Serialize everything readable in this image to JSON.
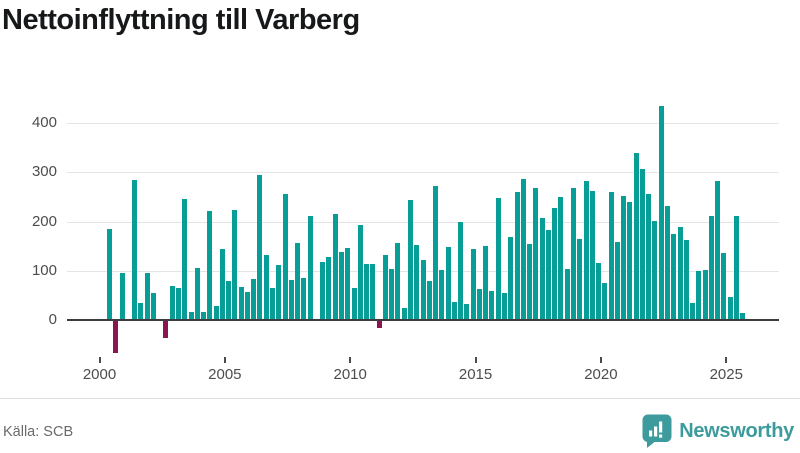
{
  "title": "Nettoinflyttning till Varberg",
  "footer": {
    "source": "Källa: SCB",
    "brand": "Newsworthy"
  },
  "colors": {
    "bar_positive": "#089e98",
    "bar_negative": "#8e1353",
    "brand_teal": "#3d9b9d",
    "gridline": "#e4e4e4",
    "axis_line": "#3c3c3c",
    "axis_text": "#4d4d4d"
  },
  "chart_data": {
    "type": "bar",
    "title": "Nettoinflyttning till Varberg",
    "frequency": "quarterly",
    "start": "2000-Q2",
    "end": "2025-Q3",
    "x_tick_labels": [
      "2000",
      "2005",
      "2010",
      "2015",
      "2020",
      "2025"
    ],
    "y_ticks": [
      0,
      100,
      200,
      300,
      400
    ],
    "ylim": [
      -75,
      450
    ],
    "grid": "horizontal",
    "legend": "none",
    "values": [
      183,
      -65,
      93,
      0,
      283,
      32,
      93,
      52,
      0,
      -35,
      68,
      63,
      243,
      14,
      104,
      14,
      220,
      27,
      143,
      78,
      222,
      66,
      54,
      81,
      292,
      131,
      62,
      110,
      254,
      80,
      154,
      84,
      210,
      0,
      115,
      126,
      213,
      137,
      144,
      63,
      191,
      111,
      111,
      -15,
      131,
      102,
      154,
      22,
      241,
      151,
      120,
      77,
      271,
      100,
      146,
      34,
      197,
      31,
      143,
      60,
      149,
      56,
      245,
      53,
      167,
      258,
      284,
      153,
      267,
      205,
      180,
      226,
      247,
      102,
      267,
      163,
      280,
      260,
      114,
      74,
      259,
      156,
      249,
      237,
      337,
      305,
      255,
      199,
      432,
      229,
      173,
      188,
      161,
      33,
      97,
      100,
      210,
      281,
      135,
      44,
      209,
      13
    ]
  }
}
